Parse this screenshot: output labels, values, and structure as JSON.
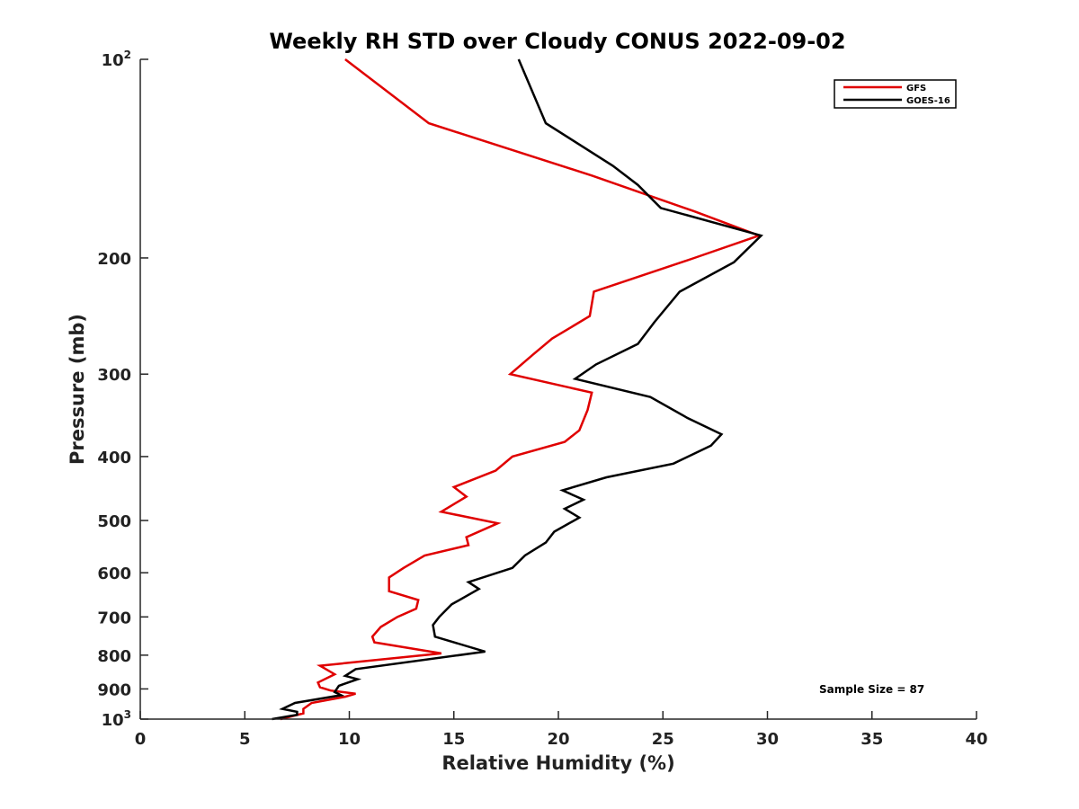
{
  "chart_data": {
    "type": "line",
    "title": "Weekly RH STD over Cloudy CONUS 2022-09-02",
    "xlabel": "Relative Humidity (%)",
    "ylabel": "Pressure (mb)",
    "xlim": [
      0,
      40
    ],
    "ylim": [
      100,
      1000
    ],
    "yscale": "log",
    "yreversed": true,
    "grid": false,
    "legend_position": "top-right",
    "x_ticks": [
      "0",
      "5",
      "10",
      "15",
      "20",
      "25",
      "30",
      "35",
      "40"
    ],
    "x_tick_values": [
      0,
      5,
      10,
      15,
      20,
      25,
      30,
      35,
      40
    ],
    "y_ticks": [
      {
        "value": 100,
        "base": "10",
        "exp": "2"
      },
      {
        "value": 200,
        "label": "200"
      },
      {
        "value": 300,
        "label": "300"
      },
      {
        "value": 400,
        "label": "400"
      },
      {
        "value": 500,
        "label": "500"
      },
      {
        "value": 600,
        "label": "600"
      },
      {
        "value": 700,
        "label": "700"
      },
      {
        "value": 800,
        "label": "800"
      },
      {
        "value": 900,
        "label": "900"
      },
      {
        "value": 1000,
        "base": "10",
        "exp": "3"
      }
    ],
    "series": [
      {
        "name": "GFS",
        "color": "#e00000",
        "points": [
          [
            9.8,
            100
          ],
          [
            13.8,
            125
          ],
          [
            21.6,
            150
          ],
          [
            26.5,
            170
          ],
          [
            29.6,
            185
          ],
          [
            26.5,
            200
          ],
          [
            21.7,
            225
          ],
          [
            21.5,
            245
          ],
          [
            19.7,
            265
          ],
          [
            18.8,
            280
          ],
          [
            17.7,
            300
          ],
          [
            21.6,
            320
          ],
          [
            21.4,
            340
          ],
          [
            21.0,
            365
          ],
          [
            20.3,
            380
          ],
          [
            17.8,
            400
          ],
          [
            17.0,
            420
          ],
          [
            15.0,
            445
          ],
          [
            15.6,
            460
          ],
          [
            14.4,
            485
          ],
          [
            17.1,
            505
          ],
          [
            15.6,
            530
          ],
          [
            15.7,
            545
          ],
          [
            13.6,
            565
          ],
          [
            12.6,
            590
          ],
          [
            11.9,
            610
          ],
          [
            11.9,
            640
          ],
          [
            13.3,
            660
          ],
          [
            13.2,
            680
          ],
          [
            12.3,
            700
          ],
          [
            11.5,
            725
          ],
          [
            11.1,
            750
          ],
          [
            11.2,
            765
          ],
          [
            14.4,
            795
          ],
          [
            8.6,
            830
          ],
          [
            9.3,
            855
          ],
          [
            8.5,
            880
          ],
          [
            8.6,
            895
          ],
          [
            9.1,
            905
          ],
          [
            10.3,
            915
          ],
          [
            9.8,
            925
          ],
          [
            8.2,
            945
          ],
          [
            7.8,
            965
          ],
          [
            7.8,
            980
          ],
          [
            6.7,
            1000
          ]
        ]
      },
      {
        "name": "GOES-16",
        "color": "#000000",
        "points": [
          [
            18.1,
            100
          ],
          [
            19.4,
            125
          ],
          [
            22.6,
            145
          ],
          [
            23.8,
            155
          ],
          [
            24.9,
            168
          ],
          [
            29.7,
            185
          ],
          [
            28.4,
            203
          ],
          [
            25.8,
            225
          ],
          [
            24.6,
            250
          ],
          [
            23.8,
            270
          ],
          [
            21.8,
            290
          ],
          [
            20.8,
            305
          ],
          [
            24.4,
            325
          ],
          [
            26.2,
            350
          ],
          [
            27.8,
            370
          ],
          [
            27.3,
            385
          ],
          [
            25.5,
            410
          ],
          [
            22.3,
            430
          ],
          [
            20.2,
            450
          ],
          [
            21.2,
            465
          ],
          [
            20.3,
            480
          ],
          [
            21.0,
            495
          ],
          [
            19.8,
            520
          ],
          [
            19.4,
            540
          ],
          [
            18.4,
            565
          ],
          [
            17.8,
            590
          ],
          [
            15.7,
            620
          ],
          [
            16.2,
            635
          ],
          [
            14.9,
            670
          ],
          [
            14.3,
            700
          ],
          [
            14.0,
            720
          ],
          [
            14.1,
            750
          ],
          [
            16.5,
            790
          ],
          [
            10.3,
            840
          ],
          [
            9.8,
            860
          ],
          [
            10.4,
            870
          ],
          [
            9.5,
            890
          ],
          [
            9.3,
            910
          ],
          [
            9.6,
            920
          ],
          [
            7.4,
            945
          ],
          [
            6.8,
            965
          ],
          [
            7.5,
            975
          ],
          [
            7.5,
            985
          ],
          [
            6.3,
            1000
          ]
        ]
      }
    ],
    "annotation": "Sample Size = 87"
  }
}
